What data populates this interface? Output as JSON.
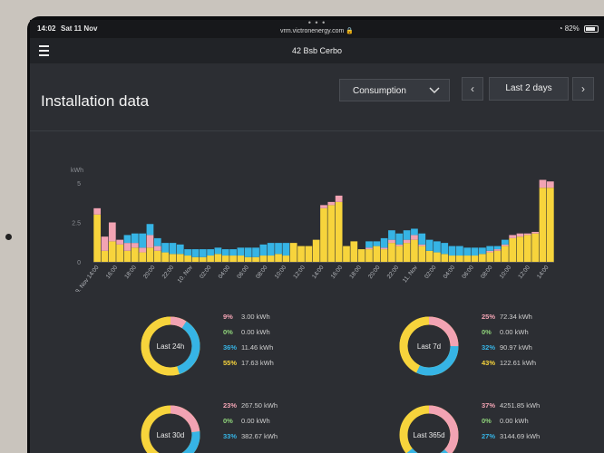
{
  "status_bar": {
    "time": "14:02",
    "date": "Sat 11 Nov",
    "url": "vrm.victronenergy.com",
    "battery": "82%",
    "battery_level": 0.82
  },
  "nav": {
    "title": "42 Bsb Cerbo"
  },
  "page": {
    "title": "Installation data"
  },
  "controls": {
    "select_value": "Consumption",
    "range_label": "Last 2 days",
    "prev": "‹",
    "next": "›"
  },
  "colors": {
    "yellow": "#f7d43c",
    "pink": "#f2a3b3",
    "green": "#8fd37a",
    "blue": "#36b4e5"
  },
  "chart_data": {
    "type": "bar",
    "stacked": true,
    "ylabel": "kWh",
    "ylim": [
      0,
      5
    ],
    "yticks": [
      "0",
      "2.5",
      "5"
    ],
    "x_tick_labels": [
      "9. Nov 14:00",
      "16:00",
      "18:00",
      "20:00",
      "22:00",
      "10. Nov",
      "02:00",
      "04:00",
      "06:00",
      "08:00",
      "10:00",
      "12:00",
      "14:00",
      "16:00",
      "18:00",
      "20:00",
      "22:00",
      "11. Nov",
      "02:00",
      "04:00",
      "06:00",
      "08:00",
      "10:00",
      "12:00",
      "14:00"
    ],
    "series": [
      {
        "color": "yellow",
        "values": [
          3.0,
          0.7,
          1.3,
          1.1,
          0.7,
          0.9,
          0.6,
          0.9,
          0.7,
          0.6,
          0.5,
          0.5,
          0.4,
          0.3,
          0.3,
          0.4,
          0.5,
          0.4,
          0.4,
          0.4,
          0.3,
          0.3,
          0.4,
          0.4,
          0.5,
          0.4,
          1.2,
          1.0,
          1.0,
          1.4,
          3.4,
          3.6,
          3.8,
          1.0,
          1.3,
          0.8,
          0.8,
          1.0,
          0.8,
          1.2,
          1.0,
          1.2,
          1.4,
          1.0,
          0.7,
          0.6,
          0.5,
          0.4,
          0.4,
          0.4,
          0.4,
          0.5,
          0.6,
          0.7,
          1.0,
          1.5,
          1.6,
          1.7,
          1.8,
          4.7,
          4.7
        ]
      },
      {
        "color": "pink",
        "values": [
          0.4,
          0.9,
          1.2,
          0.3,
          0.5,
          0.3,
          0.3,
          0.8,
          0.3,
          0.0,
          0.0,
          0.0,
          0.0,
          0.0,
          0.0,
          0.0,
          0.0,
          0.0,
          0.0,
          0.0,
          0.0,
          0.0,
          0.0,
          0.0,
          0.0,
          0.0,
          0.0,
          0.0,
          0.0,
          0.0,
          0.2,
          0.2,
          0.4,
          0.0,
          0.0,
          0.0,
          0.1,
          0.0,
          0.1,
          0.2,
          0.1,
          0.2,
          0.3,
          0.1,
          0.0,
          0.0,
          0.0,
          0.0,
          0.0,
          0.0,
          0.0,
          0.0,
          0.1,
          0.1,
          0.1,
          0.2,
          0.2,
          0.1,
          0.1,
          0.5,
          0.4
        ]
      },
      {
        "color": "green",
        "values": [
          0.0,
          0.0,
          0.0,
          0.0,
          0.0,
          0.0,
          0.0,
          0.0,
          0.0,
          0.0,
          0.0,
          0.0,
          0.0,
          0.0,
          0.0,
          0.0,
          0.0,
          0.0,
          0.0,
          0.0,
          0.0,
          0.0,
          0.0,
          0.0,
          0.0,
          0.0,
          0.0,
          0.0,
          0.0,
          0.0,
          0.0,
          0.0,
          0.0,
          0.0,
          0.0,
          0.0,
          0.0,
          0.0,
          0.0,
          0.0,
          0.0,
          0.0,
          0.0,
          0.0,
          0.0,
          0.0,
          0.0,
          0.0,
          0.0,
          0.0,
          0.0,
          0.0,
          0.0,
          0.0,
          0.0,
          0.0,
          0.0,
          0.0,
          0.0,
          0.0,
          0.0
        ]
      },
      {
        "color": "blue",
        "values": [
          0.0,
          0.0,
          0.0,
          0.0,
          0.5,
          0.6,
          0.9,
          0.7,
          0.5,
          0.6,
          0.7,
          0.6,
          0.4,
          0.5,
          0.5,
          0.4,
          0.4,
          0.4,
          0.4,
          0.5,
          0.6,
          0.6,
          0.7,
          0.8,
          0.7,
          0.8,
          0.0,
          0.0,
          0.0,
          0.0,
          0.0,
          0.0,
          0.0,
          0.0,
          0.0,
          0.0,
          0.4,
          0.3,
          0.6,
          0.6,
          0.7,
          0.6,
          0.4,
          0.7,
          0.7,
          0.7,
          0.7,
          0.6,
          0.6,
          0.5,
          0.5,
          0.4,
          0.3,
          0.2,
          0.3,
          0.0,
          0.0,
          0.0,
          0.0,
          0.0,
          0.0
        ]
      }
    ]
  },
  "summaries": [
    {
      "label": "Last 24h",
      "items": [
        {
          "pct": "9%",
          "kwh": "3.00 kWh",
          "color": "pink",
          "value": 9
        },
        {
          "pct": "0%",
          "kwh": "0.00 kWh",
          "color": "green",
          "value": 0
        },
        {
          "pct": "36%",
          "kwh": "11.46 kWh",
          "color": "blue",
          "value": 36
        },
        {
          "pct": "55%",
          "kwh": "17.63 kWh",
          "color": "yellow",
          "value": 55
        }
      ]
    },
    {
      "label": "Last 7d",
      "items": [
        {
          "pct": "25%",
          "kwh": "72.34 kWh",
          "color": "pink",
          "value": 25
        },
        {
          "pct": "0%",
          "kwh": "0.00 kWh",
          "color": "green",
          "value": 0
        },
        {
          "pct": "32%",
          "kwh": "90.97 kWh",
          "color": "blue",
          "value": 32
        },
        {
          "pct": "43%",
          "kwh": "122.61 kWh",
          "color": "yellow",
          "value": 43
        }
      ]
    },
    {
      "label": "Last 30d",
      "items": [
        {
          "pct": "23%",
          "kwh": "267.50 kWh",
          "color": "pink",
          "value": 23
        },
        {
          "pct": "0%",
          "kwh": "0.00 kWh",
          "color": "green",
          "value": 0
        },
        {
          "pct": "33%",
          "kwh": "382.67 kWh",
          "color": "blue",
          "value": 33
        }
      ]
    },
    {
      "label": "Last 365d",
      "items": [
        {
          "pct": "37%",
          "kwh": "4251.85 kWh",
          "color": "pink",
          "value": 37
        },
        {
          "pct": "0%",
          "kwh": "0.00 kWh",
          "color": "green",
          "value": 0
        },
        {
          "pct": "27%",
          "kwh": "3144.69 kWh",
          "color": "blue",
          "value": 27
        }
      ]
    }
  ]
}
